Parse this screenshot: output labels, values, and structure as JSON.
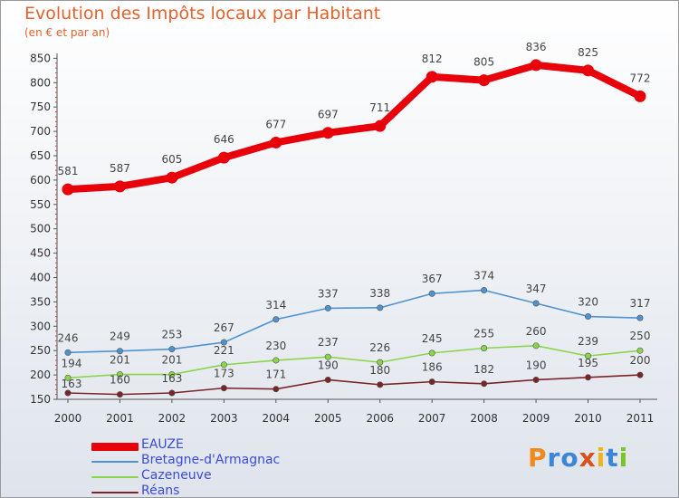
{
  "title": "Evolution des Impôts locaux par Habitant",
  "subtitle": "(en € et par an)",
  "logo": {
    "text": "Proxiti",
    "letter_colors": [
      "#f08a1a",
      "#3b86d6",
      "#3b86d6",
      "#d9501c",
      "#f0b41a",
      "#3b86d6",
      "#7cc324"
    ]
  },
  "chart_data": {
    "type": "line",
    "title": "Evolution des Impôts locaux par Habitant",
    "subtitle": "(en € et par an)",
    "x": [
      "2000",
      "2001",
      "2002",
      "2003",
      "2004",
      "2005",
      "2006",
      "2007",
      "2008",
      "2009",
      "2010",
      "2011"
    ],
    "ylim": [
      150,
      860
    ],
    "yticks": [
      150,
      200,
      250,
      300,
      350,
      400,
      450,
      500,
      550,
      600,
      650,
      700,
      750,
      800,
      850
    ],
    "grid": false,
    "legend": "bottom-left",
    "series": [
      {
        "name": "EAUZE",
        "color": "#e8000b",
        "values": [
          581,
          587,
          605,
          646,
          677,
          697,
          711,
          812,
          805,
          836,
          825,
          772
        ]
      },
      {
        "name": "Bretagne-d'Armagnac",
        "color": "#4f92d0",
        "values": [
          246,
          249,
          253,
          267,
          314,
          337,
          338,
          367,
          374,
          347,
          320,
          317
        ]
      },
      {
        "name": "Cazeneuve",
        "color": "#8ad64a",
        "values": [
          194,
          201,
          201,
          221,
          230,
          237,
          226,
          245,
          255,
          260,
          239,
          250
        ]
      },
      {
        "name": "Réans",
        "color": "#7a2426",
        "values": [
          163,
          160,
          163,
          173,
          171,
          190,
          180,
          186,
          182,
          190,
          195,
          200
        ]
      }
    ]
  }
}
